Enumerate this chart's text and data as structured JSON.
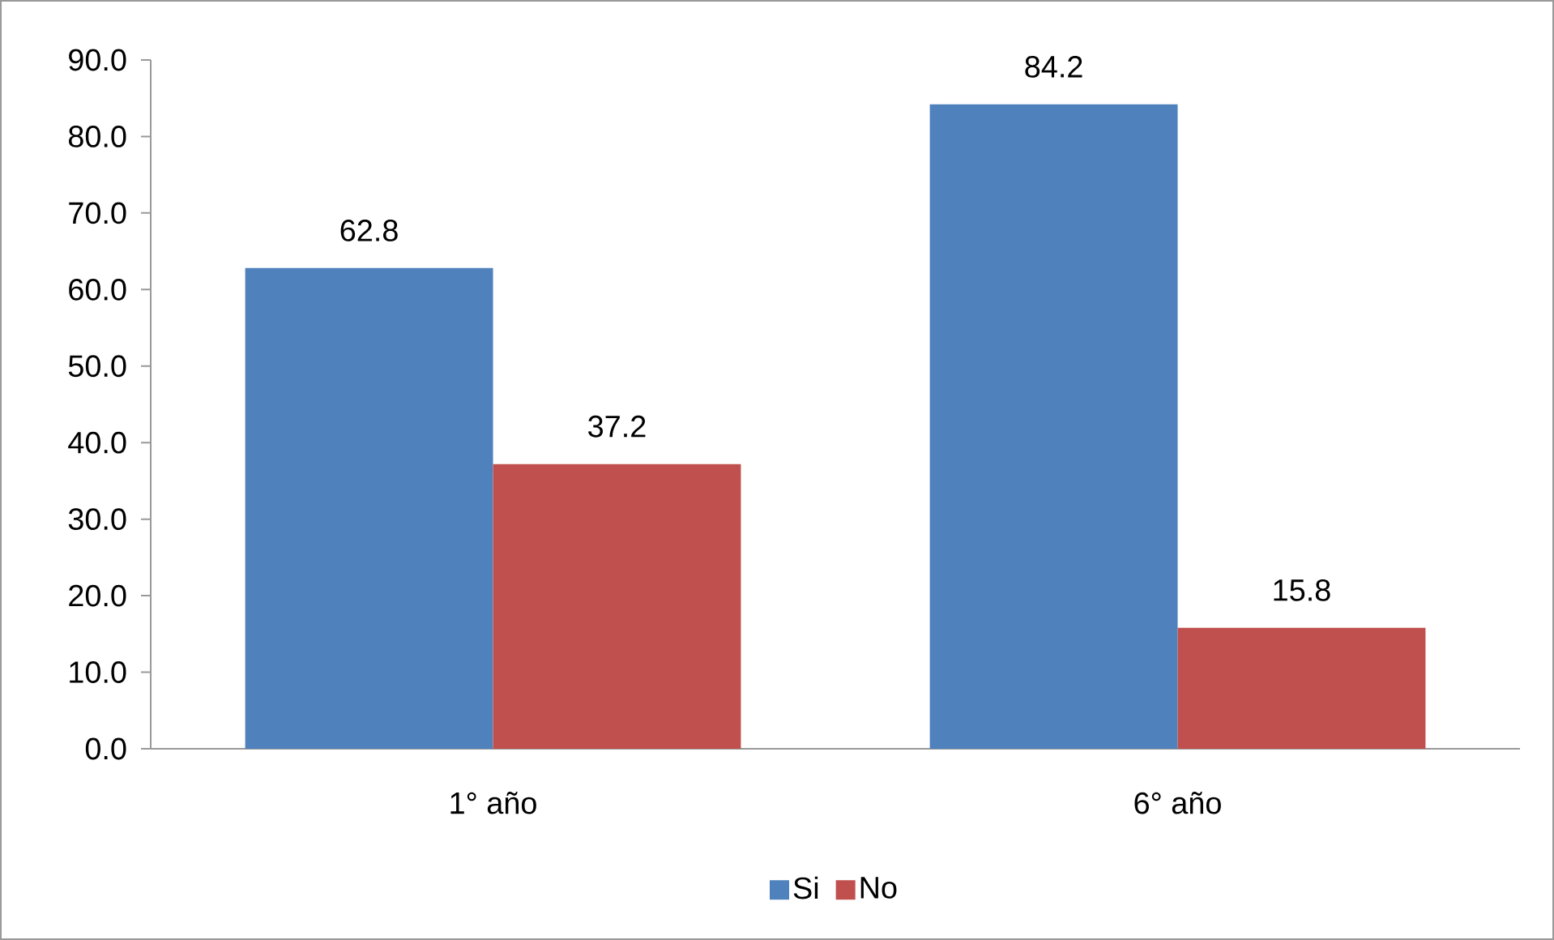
{
  "chart_data": {
    "type": "bar",
    "categories": [
      "1° año",
      "6° año"
    ],
    "series": [
      {
        "name": "Si",
        "color": "#4f81bd",
        "values": [
          62.8,
          84.2
        ]
      },
      {
        "name": "No",
        "color": "#c0504d",
        "values": [
          37.2,
          15.8
        ]
      }
    ],
    "ylim": [
      0,
      90
    ],
    "yticks": [
      {
        "value": 0,
        "label": "0.0"
      },
      {
        "value": 10,
        "label": "10.0"
      },
      {
        "value": 20,
        "label": "20.0"
      },
      {
        "value": 30,
        "label": "30.0"
      },
      {
        "value": 40,
        "label": "40.0"
      },
      {
        "value": 50,
        "label": "50.0"
      },
      {
        "value": 60,
        "label": "60.0"
      },
      {
        "value": 70,
        "label": "70.0"
      },
      {
        "value": 80,
        "label": "80.0"
      },
      {
        "value": 90,
        "label": "90.0"
      }
    ],
    "data_labels": true,
    "legend": "bottom"
  }
}
